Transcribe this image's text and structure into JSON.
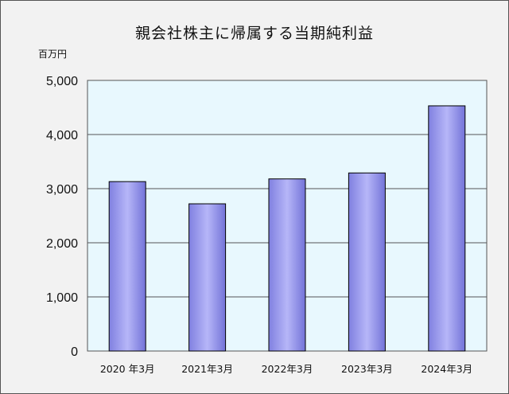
{
  "chart_data": {
    "type": "bar",
    "title": "親会社株主に帰属する当期純利益",
    "unit": "百万円",
    "categories": [
      "2020 年3月",
      "2021年3月",
      "2022年3月",
      "2023年3月",
      "2024年3月"
    ],
    "values": [
      3130,
      2720,
      3180,
      3290,
      4530
    ],
    "ylim": [
      0,
      5000
    ],
    "yticks": [
      0,
      1000,
      2000,
      3000,
      4000,
      5000
    ],
    "ytick_labels": [
      "0",
      "1,000",
      "2,000",
      "3,000",
      "4,000",
      "5,000"
    ],
    "grid": true,
    "legend": "none",
    "colors": {
      "plot_background": "#e8f8fe",
      "chart_background": "#f2f2f2",
      "bar_edge": "#8080e0",
      "bar_center": "#b6b6f8",
      "bar_dark": "#7373d8"
    }
  }
}
